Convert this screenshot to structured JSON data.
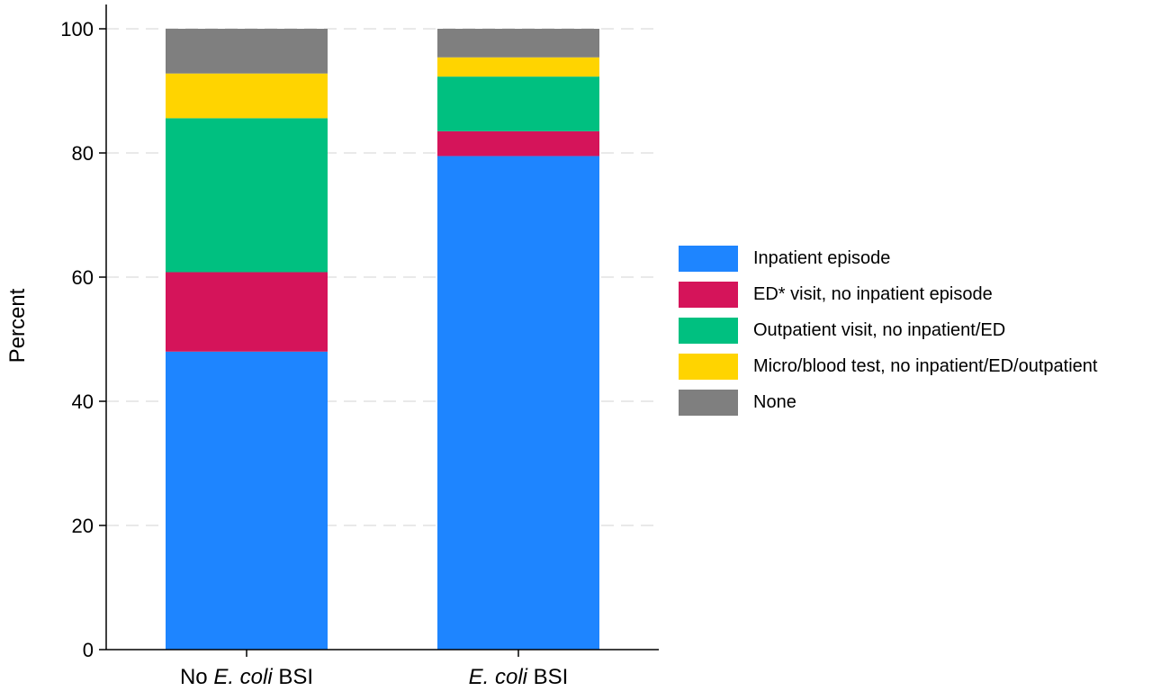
{
  "chart_data": {
    "type": "bar",
    "stacked": true,
    "ylabel": "Percent",
    "xlabel": "",
    "ylim": [
      0,
      100
    ],
    "yticks": [
      0,
      20,
      40,
      60,
      80,
      100
    ],
    "grid": "horizontal dashed",
    "legend_position": "right",
    "categories": [
      {
        "pre": "No ",
        "italic": "E. coli",
        "post": " BSI"
      },
      {
        "pre": "",
        "italic": "E. coli",
        "post": " BSI"
      }
    ],
    "series": [
      {
        "name": "Inpatient episode",
        "color": "#1E85FF",
        "values": [
          48.0,
          79.5
        ]
      },
      {
        "name": "ED* visit, no inpatient episode",
        "color": "#D5145A",
        "values": [
          12.8,
          4.0
        ]
      },
      {
        "name": "Outpatient visit, no inpatient/ED",
        "color": "#00C080",
        "values": [
          24.8,
          8.8
        ]
      },
      {
        "name": "Micro/blood test, no inpatient/ED/outpatient",
        "color": "#FFD400",
        "values": [
          7.2,
          3.1
        ]
      },
      {
        "name": "None",
        "color": "#7F7F7F",
        "values": [
          7.2,
          4.6
        ]
      }
    ]
  }
}
